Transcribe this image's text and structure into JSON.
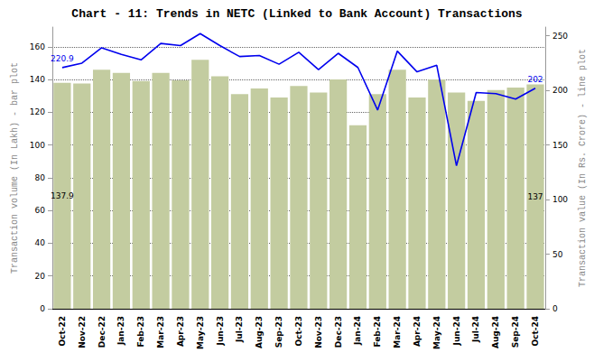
{
  "chart_data": {
    "type": "bar",
    "title": "Chart - 11: Trends in NETC (Linked to Bank Account) Transactions",
    "y_label": "Transaction volume (In Lakh) - bar plot",
    "y2_label": "Transaction value (In Rs. Crore) - line plot",
    "categories": [
      "Oct-22",
      "Nov-22",
      "Dec-22",
      "Jan-23",
      "Feb-23",
      "Mar-23",
      "Apr-23",
      "May-23",
      "Jun-23",
      "Jul-23",
      "Aug-23",
      "Sep-23",
      "Oct-23",
      "Nov-23",
      "Dec-23",
      "Jan-24",
      "Feb-24",
      "Mar-24",
      "Apr-24",
      "May-24",
      "Jun-24",
      "Jul-24",
      "Aug-24",
      "Sep-24",
      "Oct-24"
    ],
    "series": [
      {
        "type": "bar",
        "color": "#c3cca0",
        "values": [
          137.9,
          137.5,
          146,
          144,
          139,
          144,
          139.5,
          152,
          142,
          131,
          134.5,
          129,
          136,
          132,
          140,
          112,
          131,
          146,
          129,
          140,
          132,
          127,
          133.5,
          135,
          137
        ],
        "value_labels": [
          "137.9",
          null,
          null,
          null,
          null,
          null,
          null,
          null,
          null,
          null,
          null,
          null,
          null,
          null,
          null,
          null,
          null,
          null,
          null,
          null,
          null,
          null,
          null,
          null,
          "137"
        ]
      },
      {
        "type": "line",
        "axis": "y2",
        "color": "#0000ee",
        "marker": "none",
        "values": [
          220.9,
          225,
          239,
          233,
          228,
          243,
          241,
          252,
          241,
          231,
          232,
          224,
          235,
          219,
          234,
          221,
          182,
          236,
          217,
          223,
          131,
          198,
          197,
          192,
          202
        ],
        "value_labels": [
          "220.9",
          null,
          null,
          null,
          null,
          null,
          null,
          null,
          null,
          null,
          null,
          null,
          null,
          null,
          null,
          null,
          null,
          null,
          null,
          null,
          null,
          null,
          null,
          null,
          "202"
        ]
      }
    ],
    "ylim": [
      0,
      172
    ],
    "yticks": [
      0,
      20,
      40,
      60,
      80,
      100,
      120,
      140,
      160
    ],
    "y2lim": [
      0,
      258
    ],
    "y2ticks": [
      0,
      50,
      100,
      150,
      200,
      250
    ],
    "grid": true
  }
}
